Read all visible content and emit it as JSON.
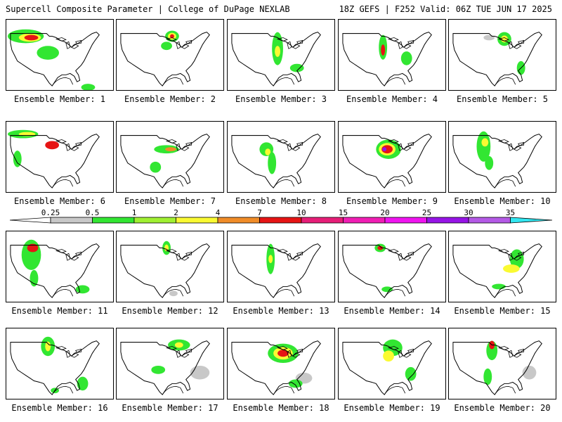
{
  "header": {
    "title_left": "Supercell Composite Parameter | College of DuPage NEXLAB",
    "title_right": "18Z GEFS | F252 Valid: 06Z TUE JUN 17 2025"
  },
  "panels": [
    {
      "label": "Ensemble Member: 1"
    },
    {
      "label": "Ensemble Member: 2"
    },
    {
      "label": "Ensemble Member: 3"
    },
    {
      "label": "Ensemble Member: 4"
    },
    {
      "label": "Ensemble Member: 5"
    },
    {
      "label": "Ensemble Member: 6"
    },
    {
      "label": "Ensemble Member: 7"
    },
    {
      "label": "Ensemble Member: 8"
    },
    {
      "label": "Ensemble Member: 9"
    },
    {
      "label": "Ensemble Member: 10"
    },
    {
      "label": "Ensemble Member: 11"
    },
    {
      "label": "Ensemble Member: 12"
    },
    {
      "label": "Ensemble Member: 13"
    },
    {
      "label": "Ensemble Member: 14"
    },
    {
      "label": "Ensemble Member: 15"
    },
    {
      "label": "Ensemble Member: 16"
    },
    {
      "label": "Ensemble Member: 17"
    },
    {
      "label": "Ensemble Member: 18"
    },
    {
      "label": "Ensemble Member: 19"
    },
    {
      "label": "Ensemble Member: 20"
    }
  ],
  "colorbar": {
    "ticks": [
      "0.25",
      "0.5",
      "1",
      "2",
      "4",
      "7",
      "10",
      "15",
      "20",
      "25",
      "30",
      "35"
    ],
    "colors": [
      "#c8c8c8",
      "#32e632",
      "#a0f032",
      "#fafa32",
      "#f08c28",
      "#e61414",
      "#e61e78",
      "#f01eb4",
      "#f014f0",
      "#9614e6",
      "#b45ae6",
      "#32e6f0"
    ]
  }
}
